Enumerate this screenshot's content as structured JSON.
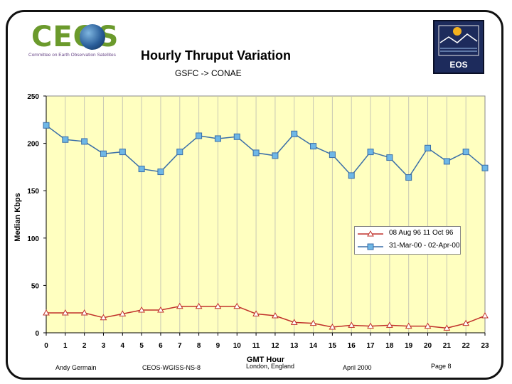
{
  "header": {
    "logo_text": "CEOS",
    "logo_tagline": "Committee on Earth Observation Satellites",
    "badge_text": "EOS"
  },
  "footer": {
    "author": "Andy Germain",
    "doc_id": "CEOS-WGISS-NS-8",
    "location": "London, England",
    "date": "April 2000",
    "page": "Page 8"
  },
  "colors": {
    "plot_bg": "#FFFFC0",
    "series1": "#C0302A",
    "series2": "#3A6EA8",
    "marker2": "#6EB7E6"
  },
  "chart_data": {
    "type": "line",
    "title": "Hourly Thruput Variation",
    "subtitle": "GSFC -> CONAE",
    "xlabel": "GMT Hour",
    "ylabel": "Median Kbps",
    "ylim": [
      0,
      250
    ],
    "yticks": [
      0,
      50,
      100,
      150,
      200,
      250
    ],
    "x": [
      0,
      1,
      2,
      3,
      4,
      5,
      6,
      7,
      8,
      9,
      10,
      11,
      12,
      13,
      14,
      15,
      16,
      17,
      18,
      19,
      20,
      21,
      22,
      23
    ],
    "legend_position": "right",
    "series": [
      {
        "name": "08 Aug 96 11 Oct 96",
        "marker": "triangle",
        "values": [
          21,
          21,
          21,
          16,
          20,
          24,
          24,
          28,
          28,
          28,
          28,
          20,
          18,
          11,
          10,
          6,
          8,
          7,
          8,
          7,
          7,
          5,
          10,
          18
        ]
      },
      {
        "name": "31-Mar-00 - 02-Apr-00",
        "marker": "square",
        "values": [
          219,
          204,
          202,
          189,
          191,
          173,
          170,
          191,
          208,
          205,
          207,
          190,
          187,
          210,
          197,
          188,
          166,
          191,
          185,
          164,
          195,
          181,
          191,
          174
        ]
      }
    ]
  }
}
